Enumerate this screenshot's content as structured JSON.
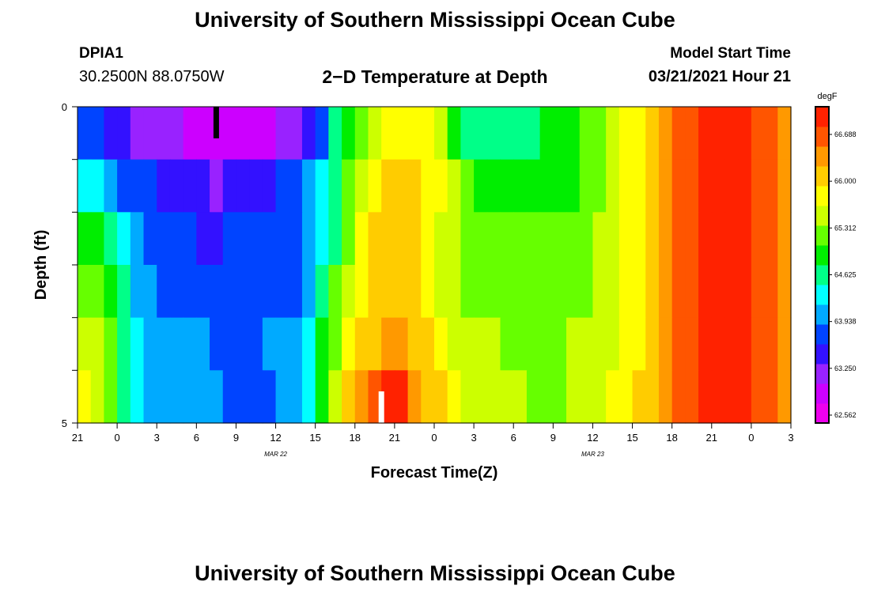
{
  "header": {
    "title": "University of Southern Mississippi Ocean Cube",
    "station": "DPIA1",
    "coords": "30.2500N 88.0750W",
    "subtitle": "2−D Temperature at Depth",
    "model_label": "Model Start Time",
    "model_time": "03/21/2021 Hour 21"
  },
  "footer": {
    "title": "University of Southern Mississippi Ocean Cube"
  },
  "chart_data": {
    "type": "heatmap",
    "title": "2−D Temperature at Depth",
    "xlabel": "Forecast Time(Z)",
    "ylabel": "Depth (ft)",
    "x_ticks": [
      "21",
      "0",
      "3",
      "6",
      "9",
      "12",
      "15",
      "18",
      "21",
      "0",
      "3",
      "6",
      "9",
      "12",
      "15",
      "18",
      "21",
      "0",
      "3"
    ],
    "y_ticks": [
      "0",
      "5"
    ],
    "ylim": [
      0,
      5
    ],
    "date_labels": [
      {
        "label": "MAR 22",
        "at_tick": 5
      },
      {
        "label": "MAR 23",
        "at_tick": 13
      }
    ],
    "colorbar": {
      "unit": "degF",
      "ticks": [
        "66.688",
        "66.000",
        "65.312",
        "64.625",
        "63.938",
        "63.250",
        "62.562"
      ],
      "min": 62.4,
      "max": 67.3,
      "colors": [
        "#ee00ee",
        "#cc00ff",
        "#9922ff",
        "#3311ff",
        "#0044ff",
        "#00aaff",
        "#00ffff",
        "#00ff88",
        "#00ee00",
        "#66ff00",
        "#ccff00",
        "#ffff00",
        "#ffcc00",
        "#ff9900",
        "#ff5500",
        "#ff2200"
      ]
    },
    "hours_step": 1,
    "n_hours": 54,
    "layers": [
      {
        "depth": 0,
        "knots": [
          [
            0,
            63.9
          ],
          [
            5,
            63.2
          ],
          [
            10,
            62.9
          ],
          [
            14,
            62.9
          ],
          [
            18,
            63.5
          ],
          [
            19,
            64.3
          ],
          [
            20,
            64.9
          ],
          [
            21,
            65.2
          ],
          [
            22,
            65.5
          ],
          [
            24,
            65.9
          ],
          [
            26,
            66.0
          ],
          [
            28,
            65.3
          ],
          [
            30,
            64.7
          ],
          [
            33,
            64.6
          ],
          [
            36,
            64.9
          ],
          [
            38,
            65.2
          ],
          [
            40,
            65.4
          ],
          [
            42,
            65.9
          ],
          [
            45,
            66.5
          ],
          [
            46,
            66.9
          ],
          [
            48,
            67.1
          ],
          [
            51,
            67.1
          ],
          [
            52,
            66.8
          ],
          [
            54,
            66.6
          ]
        ]
      },
      {
        "depth": 1,
        "knots": [
          [
            0,
            64.4
          ],
          [
            2,
            64.2
          ],
          [
            4,
            63.8
          ],
          [
            10,
            63.3
          ],
          [
            14,
            63.4
          ],
          [
            16,
            63.8
          ],
          [
            18,
            64.1
          ],
          [
            19,
            64.4
          ],
          [
            20,
            65.2
          ],
          [
            22,
            65.9
          ],
          [
            24,
            66.3
          ],
          [
            26,
            66.1
          ],
          [
            28,
            65.7
          ],
          [
            30,
            65.0
          ],
          [
            32,
            64.9
          ],
          [
            36,
            64.9
          ],
          [
            38,
            65.2
          ],
          [
            40,
            65.5
          ],
          [
            42,
            65.9
          ],
          [
            45,
            66.5
          ],
          [
            46,
            66.9
          ],
          [
            48,
            67.1
          ],
          [
            51,
            67.1
          ],
          [
            52,
            66.8
          ],
          [
            54,
            66.6
          ]
        ]
      },
      {
        "depth": 2,
        "knots": [
          [
            0,
            65.2
          ],
          [
            2,
            64.9
          ],
          [
            3,
            64.4
          ],
          [
            5,
            63.8
          ],
          [
            10,
            63.6
          ],
          [
            16,
            63.8
          ],
          [
            18,
            64.1
          ],
          [
            19,
            64.4
          ],
          [
            20,
            65.2
          ],
          [
            22,
            66.1
          ],
          [
            24,
            66.4
          ],
          [
            26,
            66.0
          ],
          [
            28,
            65.6
          ],
          [
            30,
            65.3
          ],
          [
            36,
            65.2
          ],
          [
            38,
            65.4
          ],
          [
            40,
            65.6
          ],
          [
            42,
            65.9
          ],
          [
            45,
            66.5
          ],
          [
            46,
            66.9
          ],
          [
            48,
            67.1
          ],
          [
            51,
            67.1
          ],
          [
            52,
            66.8
          ],
          [
            54,
            66.6
          ]
        ]
      },
      {
        "depth": 3,
        "knots": [
          [
            0,
            65.5
          ],
          [
            2,
            65.2
          ],
          [
            3,
            64.8
          ],
          [
            4,
            64.3
          ],
          [
            6,
            63.9
          ],
          [
            12,
            63.8
          ],
          [
            17,
            63.9
          ],
          [
            18,
            64.3
          ],
          [
            19,
            64.9
          ],
          [
            20,
            65.5
          ],
          [
            22,
            66.1
          ],
          [
            24,
            66.4
          ],
          [
            26,
            66.0
          ],
          [
            28,
            65.6
          ],
          [
            30,
            65.4
          ],
          [
            36,
            65.3
          ],
          [
            38,
            65.4
          ],
          [
            40,
            65.6
          ],
          [
            42,
            65.9
          ],
          [
            45,
            66.5
          ],
          [
            46,
            66.9
          ],
          [
            48,
            67.1
          ],
          [
            51,
            67.1
          ],
          [
            52,
            66.8
          ],
          [
            54,
            66.6
          ]
        ]
      },
      {
        "depth": 4,
        "knots": [
          [
            0,
            65.8
          ],
          [
            2,
            65.5
          ],
          [
            3,
            65.0
          ],
          [
            4,
            64.4
          ],
          [
            6,
            64.0
          ],
          [
            12,
            63.9
          ],
          [
            17,
            64.0
          ],
          [
            18,
            64.6
          ],
          [
            19,
            65.2
          ],
          [
            20,
            65.7
          ],
          [
            22,
            66.3
          ],
          [
            24,
            66.6
          ],
          [
            26,
            66.2
          ],
          [
            28,
            65.8
          ],
          [
            30,
            65.5
          ],
          [
            36,
            65.4
          ],
          [
            38,
            65.5
          ],
          [
            40,
            65.6
          ],
          [
            42,
            65.9
          ],
          [
            45,
            66.5
          ],
          [
            46,
            66.9
          ],
          [
            48,
            67.1
          ],
          [
            51,
            67.1
          ],
          [
            52,
            66.8
          ],
          [
            54,
            66.6
          ]
        ]
      },
      {
        "depth": 5,
        "knots": [
          [
            0,
            66.1
          ],
          [
            1,
            66.0
          ],
          [
            2,
            65.5
          ],
          [
            3,
            65.0
          ],
          [
            4,
            64.5
          ],
          [
            6,
            64.1
          ],
          [
            12,
            63.9
          ],
          [
            15,
            63.9
          ],
          [
            17,
            64.1
          ],
          [
            18,
            64.7
          ],
          [
            19,
            65.3
          ],
          [
            20,
            65.8
          ],
          [
            21,
            66.4
          ],
          [
            22,
            66.8
          ],
          [
            23,
            67.1
          ],
          [
            24,
            67.2
          ],
          [
            25,
            66.8
          ],
          [
            26,
            66.5
          ],
          [
            28,
            66.0
          ],
          [
            30,
            65.6
          ],
          [
            36,
            65.4
          ],
          [
            38,
            65.5
          ],
          [
            40,
            65.7
          ],
          [
            42,
            66.0
          ],
          [
            45,
            66.5
          ],
          [
            46,
            66.9
          ],
          [
            48,
            67.1
          ],
          [
            51,
            67.1
          ],
          [
            52,
            66.8
          ],
          [
            54,
            66.6
          ]
        ]
      }
    ],
    "markers": [
      {
        "color": "#000000",
        "hour": 10.5,
        "depth_from": 0,
        "depth_to": 0.5
      },
      {
        "color": "#ffffff",
        "hour": 23.0,
        "depth_from": 4.5,
        "depth_to": 5
      }
    ]
  }
}
